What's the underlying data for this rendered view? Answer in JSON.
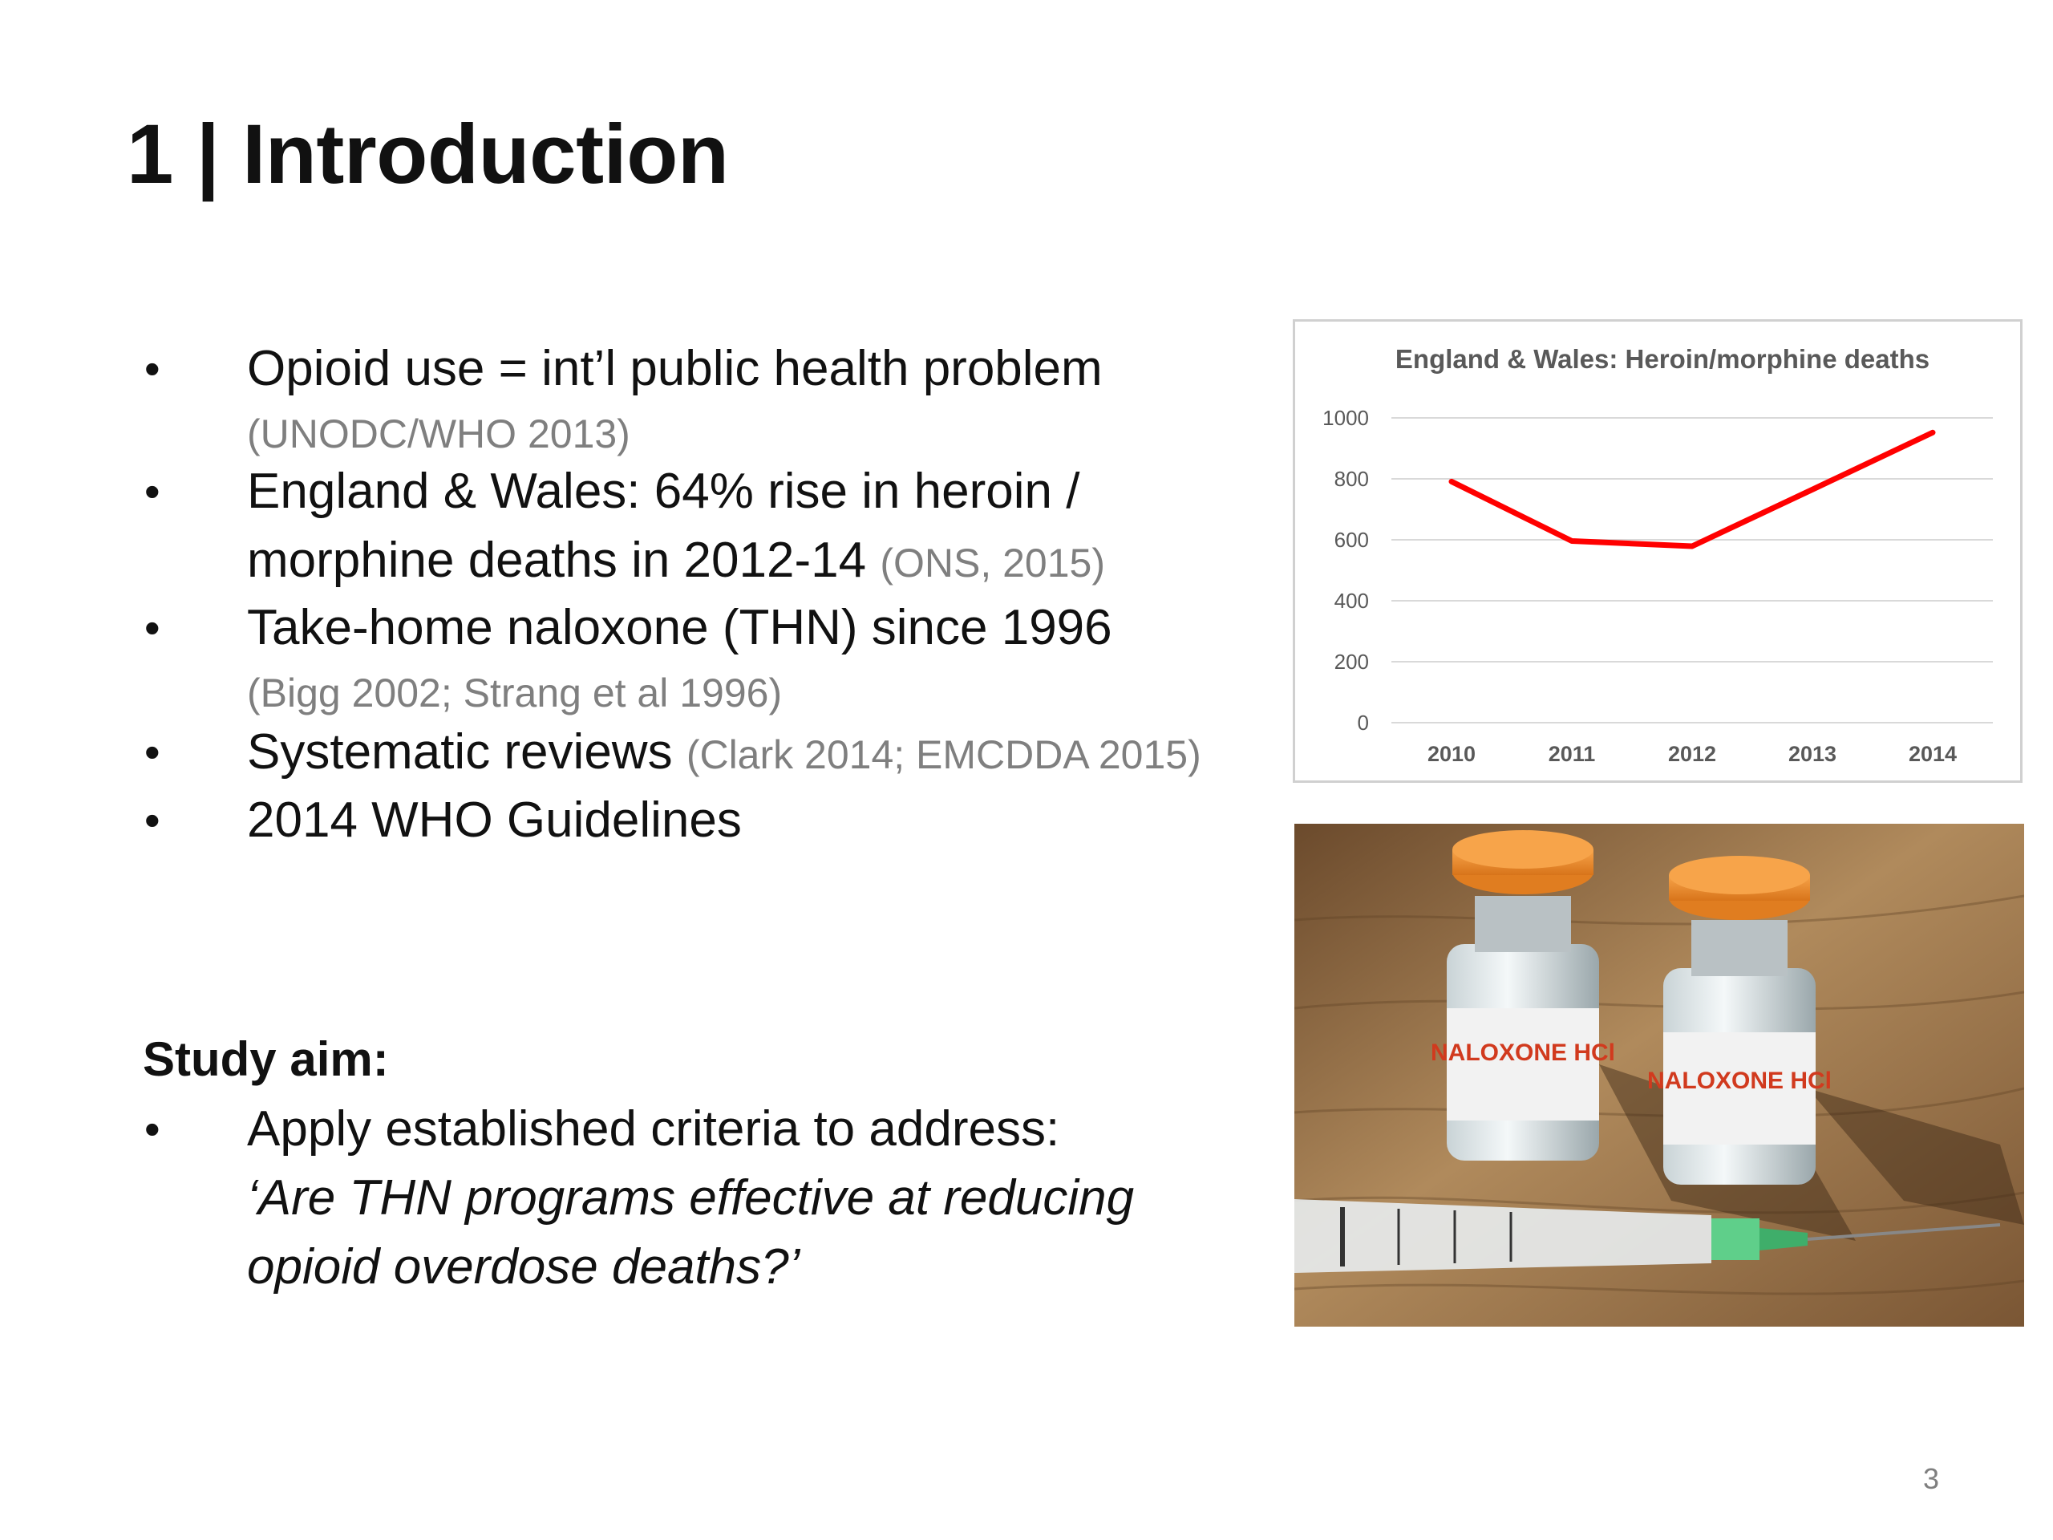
{
  "slide": {
    "title": "1 | Introduction",
    "page_number": "3"
  },
  "bullets": [
    {
      "text": "Opioid use = int’l public health problem",
      "citation": "(UNODC/WHO 2013)"
    },
    {
      "text_line1": "England & Wales: 64% rise in heroin /",
      "text_line2": "morphine deaths in 2012-14",
      "citation": "(ONS, 2015)"
    },
    {
      "text": "Take-home naloxone (THN) since 1996",
      "citation": "(Bigg 2002; Strang et al 1996)"
    },
    {
      "text": "Systematic reviews",
      "citation": "(Clark 2014; EMCDDA 2015)"
    },
    {
      "text": "2014 WHO Guidelines"
    }
  ],
  "study_aim": {
    "heading": "Study aim:",
    "bullet": "Apply established criteria to address:",
    "question_line1": "‘Are THN programs effective at reducing",
    "question_line2": "opioid overdose deaths?’"
  },
  "chart_data": {
    "type": "line",
    "title": "England & Wales: Heroin/morphine deaths",
    "categories": [
      "2010",
      "2011",
      "2012",
      "2013",
      "2014"
    ],
    "series": [
      {
        "values": [
          791,
          596,
          579,
          765,
          952
        ],
        "color": "#ff0000"
      }
    ],
    "ylim": [
      0,
      1000
    ],
    "yticks": [
      "0",
      "200",
      "400",
      "600",
      "800",
      "1000"
    ],
    "grid": true,
    "legend": "none"
  },
  "photo": {
    "vial_label_1": "NALOXONE HCl",
    "vial_label_2": "NALOXONE HCl"
  },
  "colors": {
    "text": "#111111",
    "citation": "#7f7f7f",
    "line": "#ff0000",
    "vial_cap": "#f08a24"
  }
}
